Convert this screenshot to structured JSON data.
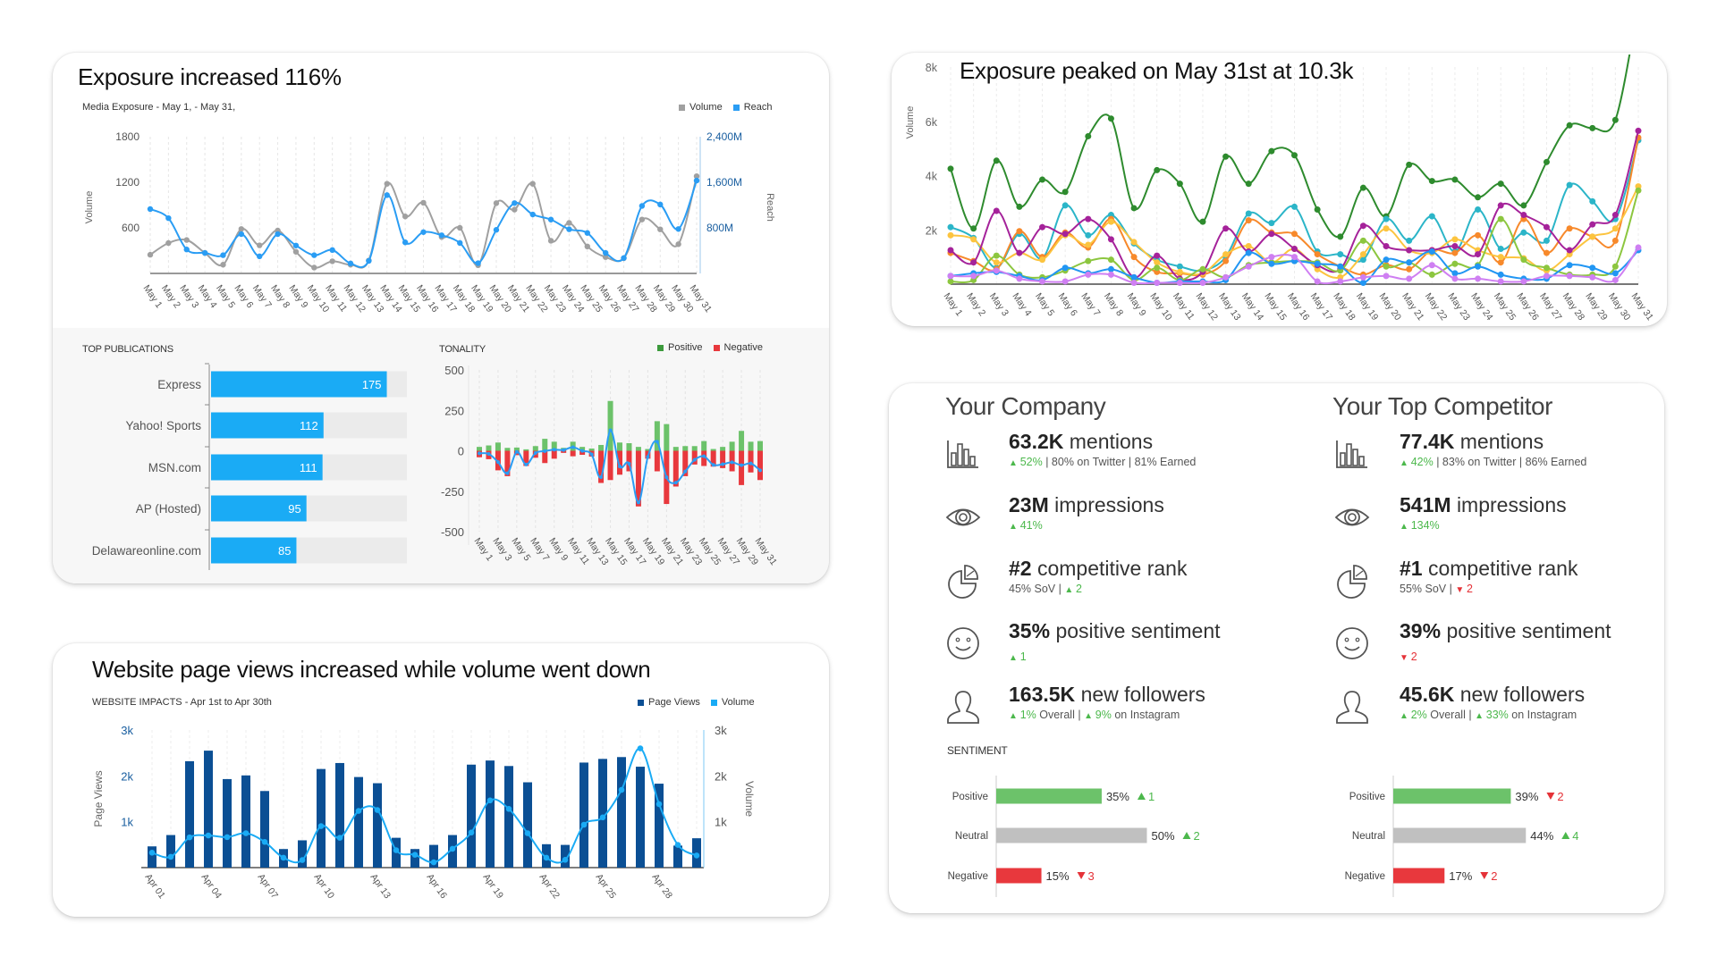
{
  "exposure_card": {
    "title": "Exposure increased 116%",
    "subtitle": "Media Exposure - May 1, - May 31,",
    "legend": {
      "volume": "Volume",
      "reach": "Reach"
    },
    "top_publications_title": "TOP PUBLICATIONS",
    "tonality_title": "TONALITY",
    "tonality_legend": {
      "positive": "Positive",
      "negative": "Negative"
    }
  },
  "peak_card": {
    "title": "Exposure peaked on May 31st at 10.3k"
  },
  "website_card": {
    "title": "Website page views increased while volume went down",
    "subtitle": "WEBSITE IMPACTS - Apr 1st to Apr 30th",
    "legend": {
      "page_views": "Page Views",
      "volume": "Volume"
    }
  },
  "comparison_card": {
    "company": {
      "title": "Your Company",
      "metrics": [
        {
          "icon": "bar-chart-icon",
          "value": "63.2K",
          "label": "mentions",
          "sub": [
            {
              "tone": "up",
              "text": "52%"
            },
            {
              "tone": "plain",
              "text": "| 80% on Twitter | 81% Earned"
            }
          ]
        },
        {
          "icon": "eye-icon",
          "value": "23M",
          "label": "impressions",
          "sub": [
            {
              "tone": "up",
              "text": "41%"
            }
          ]
        },
        {
          "icon": "pie-chart-icon",
          "value": "#2",
          "label": "competitive rank",
          "sub": [
            {
              "tone": "plain",
              "text": "45% SoV |"
            },
            {
              "tone": "up",
              "text": "2"
            }
          ]
        },
        {
          "icon": "smiley-icon",
          "value": "35%",
          "label": "positive sentiment",
          "sub": [
            {
              "tone": "up",
              "text": "1"
            }
          ]
        },
        {
          "icon": "user-icon",
          "value": "163.5K",
          "label": "new followers",
          "sub": [
            {
              "tone": "up",
              "text": "1%"
            },
            {
              "tone": "plain",
              "text": "Overall |"
            },
            {
              "tone": "up",
              "text": "9%"
            },
            {
              "tone": "plain",
              "text": "on Instagram"
            }
          ]
        }
      ]
    },
    "competitor": {
      "title": "Your Top Competitor",
      "metrics": [
        {
          "icon": "bar-chart-icon",
          "value": "77.4K",
          "label": "mentions",
          "sub": [
            {
              "tone": "up",
              "text": "42%"
            },
            {
              "tone": "plain",
              "text": "| 83% on Twitter | 86% Earned"
            }
          ]
        },
        {
          "icon": "eye-icon",
          "value": "541M",
          "label": "impressions",
          "sub": [
            {
              "tone": "up",
              "text": "134%"
            }
          ]
        },
        {
          "icon": "pie-chart-icon",
          "value": "#1",
          "label": "competitive rank",
          "sub": [
            {
              "tone": "plain",
              "text": "55% SoV |"
            },
            {
              "tone": "down",
              "text": "2"
            }
          ]
        },
        {
          "icon": "smiley-icon",
          "value": "39%",
          "label": "positive sentiment",
          "sub": [
            {
              "tone": "down",
              "text": "2"
            }
          ]
        },
        {
          "icon": "user-icon",
          "value": "45.6K",
          "label": "new followers",
          "sub": [
            {
              "tone": "up",
              "text": "2%"
            },
            {
              "tone": "plain",
              "text": "Overall |"
            },
            {
              "tone": "up",
              "text": "33%"
            },
            {
              "tone": "plain",
              "text": "on Instagram"
            }
          ]
        }
      ]
    },
    "sentiment_title": "SENTIMENT"
  },
  "colors": {
    "volume_gray": "#a0a0a0",
    "reach_blue": "#2a9df4",
    "bar_blue": "#1aabf5",
    "page_views": "#0b4f94",
    "positive": "#6cc26a",
    "negative": "#e8383d",
    "neutral": "#c0c0c0",
    "track": "#ebebeb"
  },
  "chart_data": [
    {
      "id": "media_exposure",
      "type": "line",
      "categories": [
        "May 1",
        "May 2",
        "May 3",
        "May 4",
        "May 5",
        "May 6",
        "May 7",
        "May 8",
        "May 9",
        "May 10",
        "May 11",
        "May 12",
        "May 13",
        "May 14",
        "May 15",
        "May 16",
        "May 17",
        "May 18",
        "May 19",
        "May 20",
        "May 21",
        "May 22",
        "May 23",
        "May 24",
        "May 25",
        "May 26",
        "May 27",
        "May 28",
        "May 29",
        "May 30",
        "May 31"
      ],
      "ylabel": "Volume",
      "y2label": "Reach",
      "ylim": [
        0,
        1800
      ],
      "yticks": [
        "600",
        "1200",
        "1800"
      ],
      "y2lim": [
        0,
        2400
      ],
      "y2ticks": [
        "800M",
        "1,600M",
        "2,400M"
      ],
      "grid": "vertical",
      "legend": "top-right",
      "series": [
        {
          "name": "Volume",
          "axis": "left",
          "values": [
            246,
            400,
            440,
            270,
            115,
            585,
            370,
            565,
            285,
            77,
            160,
            115,
            170,
            1180,
            750,
            930,
            480,
            600,
            108,
            925,
            840,
            1180,
            430,
            665,
            355,
            215,
            200,
            710,
            580,
            385,
            1280
          ]
        },
        {
          "name": "Reach",
          "axis": "right",
          "unit": "M",
          "values": [
            1130,
            970,
            420,
            360,
            320,
            690,
            300,
            690,
            490,
            320,
            410,
            175,
            220,
            1375,
            545,
            725,
            670,
            535,
            180,
            765,
            1235,
            1035,
            945,
            775,
            710,
            360,
            270,
            1185,
            1210,
            780,
            1630
          ]
        }
      ]
    },
    {
      "id": "top_publications",
      "type": "bar",
      "orientation": "horizontal",
      "categories": [
        "Express",
        "Yahoo! Sports",
        "MSN.com",
        "AP (Hosted)",
        "Delawareonline.com"
      ],
      "values": [
        175,
        112,
        111,
        95,
        85
      ],
      "xlim": [
        0,
        195
      ]
    },
    {
      "id": "tonality",
      "type": "bar",
      "stacked": "diverging",
      "x_tick_labels": [
        "May 1",
        "May 3",
        "May 5",
        "May 7",
        "May 9",
        "May 11",
        "May 13",
        "May 15",
        "May 17",
        "May 19",
        "May 21",
        "May 23",
        "May 25",
        "May 27",
        "May 29",
        "May 31"
      ],
      "ylim": [
        -500,
        500
      ],
      "yticks": [
        "500",
        "250",
        "0",
        "-250",
        "-500"
      ],
      "legend": "top-right",
      "series": [
        {
          "name": "Positive",
          "values": [
            24,
            33,
            51,
            18,
            20,
            9,
            29,
            74,
            56,
            18,
            56,
            24,
            14,
            36,
            308,
            51,
            47,
            24,
            11,
            183,
            165,
            24,
            29,
            29,
            60,
            11,
            24,
            56,
            123,
            56,
            60
          ]
        },
        {
          "name": "Negative",
          "values": [
            -40,
            -52,
            -121,
            -157,
            -27,
            -94,
            -43,
            -76,
            -49,
            -13,
            -34,
            -25,
            -36,
            -199,
            -181,
            -148,
            -127,
            -344,
            -49,
            -127,
            -329,
            -221,
            -157,
            -85,
            -94,
            -98,
            -107,
            -127,
            -212,
            -134,
            -181
          ]
        }
      ]
    },
    {
      "id": "website_impacts",
      "type": "bar",
      "x_tick_labels": [
        "Apr 01",
        "Apr 04",
        "Apr 07",
        "Apr 10",
        "Apr 13",
        "Apr 16",
        "Apr 19",
        "Apr 22",
        "Apr 25",
        "Apr 28"
      ],
      "ylabel": "Page Views",
      "y2label": "Volume",
      "ylim": [
        0,
        3000
      ],
      "yticks": [
        "1k",
        "2k",
        "3k"
      ],
      "y2ticks": [
        "1k",
        "2k",
        "3k"
      ],
      "legend": "top-right",
      "series": [
        {
          "name": "Page Views",
          "type": "bar",
          "values": [
            463,
            710,
            2320,
            2550,
            1930,
            2010,
            1670,
            405,
            595,
            2150,
            2280,
            1975,
            1840,
            650,
            405,
            495,
            710,
            2245,
            2335,
            2215,
            1860,
            510,
            495,
            2290,
            2370,
            2410,
            2200,
            1830,
            480,
            640
          ]
        },
        {
          "name": "Volume",
          "type": "line",
          "values": [
            325,
            235,
            660,
            700,
            665,
            750,
            560,
            215,
            165,
            905,
            650,
            1235,
            1255,
            380,
            280,
            115,
            410,
            765,
            1465,
            1280,
            750,
            215,
            170,
            935,
            1095,
            1695,
            2600,
            1385,
            495,
            265
          ]
        }
      ]
    },
    {
      "id": "exposure_peak",
      "type": "line",
      "categories": [
        "May 1",
        "May 2",
        "May 3",
        "May 4",
        "May 5",
        "May 6",
        "May 7",
        "May 8",
        "May 9",
        "May 10",
        "May 11",
        "May 12",
        "May 13",
        "May 14",
        "May 15",
        "May 16",
        "May 17",
        "May 18",
        "May 19",
        "May 20",
        "May 21",
        "May 22",
        "May 23",
        "May 24",
        "May 25",
        "May 26",
        "May 27",
        "May 28",
        "May 29",
        "May 30",
        "May 31"
      ],
      "ylabel": "Volume",
      "ylim": [
        0,
        8000
      ],
      "yticks": [
        "2k",
        "4k",
        "6k",
        "8k"
      ],
      "grid": "vertical",
      "series": [
        {
          "color": "#2e8b2e",
          "values": [
            4250,
            2050,
            4550,
            2850,
            3850,
            3400,
            5450,
            6100,
            2800,
            4200,
            3700,
            2300,
            4700,
            3700,
            4900,
            4750,
            2750,
            1750,
            3550,
            2500,
            4400,
            3800,
            3850,
            3200,
            3700,
            2900,
            4500,
            5850,
            5750,
            6050,
            10300
          ]
        },
        {
          "color": "#2bb5c8",
          "values": [
            2100,
            1700,
            600,
            1850,
            950,
            2900,
            1800,
            2550,
            1500,
            900,
            650,
            500,
            1000,
            2600,
            2250,
            2850,
            1200,
            1100,
            900,
            2400,
            1600,
            2500,
            1200,
            2750,
            1300,
            1900,
            1600,
            3650,
            3050,
            2400,
            5300
          ]
        },
        {
          "color": "#f7892b",
          "values": [
            1150,
            850,
            550,
            1950,
            1000,
            1900,
            1350,
            2400,
            1000,
            450,
            400,
            350,
            850,
            2350,
            1900,
            1850,
            1100,
            650,
            350,
            700,
            550,
            1250,
            1150,
            1800,
            800,
            2400,
            1150,
            2050,
            1750,
            1600,
            5400
          ]
        },
        {
          "color": "#fcc43f",
          "values": [
            1800,
            1650,
            800,
            1150,
            900,
            1800,
            1450,
            2300,
            1550,
            800,
            450,
            400,
            1100,
            1400,
            800,
            1300,
            550,
            250,
            1100,
            2050,
            1250,
            1150,
            1650,
            1250,
            1000,
            950,
            500,
            1100,
            1750,
            2050,
            3600
          ]
        },
        {
          "color": "#a5229a",
          "values": [
            1250,
            800,
            2700,
            1150,
            2100,
            1850,
            2400,
            1650,
            250,
            1050,
            200,
            450,
            2050,
            1200,
            1850,
            1300,
            700,
            550,
            2150,
            1400,
            1250,
            1250,
            1400,
            1100,
            2900,
            2550,
            2100,
            1250,
            2200,
            2550,
            5650
          ]
        },
        {
          "color": "#8cc63f",
          "values": [
            100,
            150,
            1050,
            350,
            250,
            500,
            850,
            900,
            150,
            600,
            150,
            550,
            250,
            700,
            800,
            850,
            800,
            500,
            1600,
            650,
            800,
            350,
            750,
            700,
            2400,
            900,
            600,
            350,
            350,
            650,
            3450
          ]
        },
        {
          "color": "#2196f3",
          "values": [
            300,
            400,
            450,
            300,
            150,
            600,
            400,
            550,
            250,
            50,
            100,
            100,
            150,
            1150,
            750,
            850,
            750,
            650,
            50,
            900,
            800,
            1200,
            400,
            650,
            350,
            200,
            200,
            700,
            600,
            400,
            1250
          ]
        },
        {
          "color": "#cf7ff2",
          "values": [
            300,
            300,
            500,
            200,
            100,
            100,
            350,
            350,
            50,
            50,
            50,
            50,
            250,
            650,
            1000,
            1000,
            100,
            100,
            250,
            300,
            200,
            700,
            200,
            200,
            100,
            100,
            300,
            300,
            250,
            150,
            1350
          ]
        }
      ]
    },
    {
      "id": "sentiment_company",
      "type": "bar",
      "orientation": "horizontal",
      "categories": [
        "Positive",
        "Neutral",
        "Negative"
      ],
      "values": [
        35,
        50,
        15
      ],
      "value_labels": [
        "35%",
        "50%",
        "15%"
      ],
      "changes": [
        {
          "dir": "up",
          "text": "1"
        },
        {
          "dir": "up",
          "text": "2"
        },
        {
          "dir": "down",
          "text": "3"
        }
      ]
    },
    {
      "id": "sentiment_competitor",
      "type": "bar",
      "orientation": "horizontal",
      "categories": [
        "Positive",
        "Neutral",
        "Negative"
      ],
      "values": [
        39,
        44,
        17
      ],
      "value_labels": [
        "39%",
        "44%",
        "17%"
      ],
      "changes": [
        {
          "dir": "down",
          "text": "2"
        },
        {
          "dir": "up",
          "text": "4"
        },
        {
          "dir": "down",
          "text": "2"
        }
      ]
    }
  ]
}
